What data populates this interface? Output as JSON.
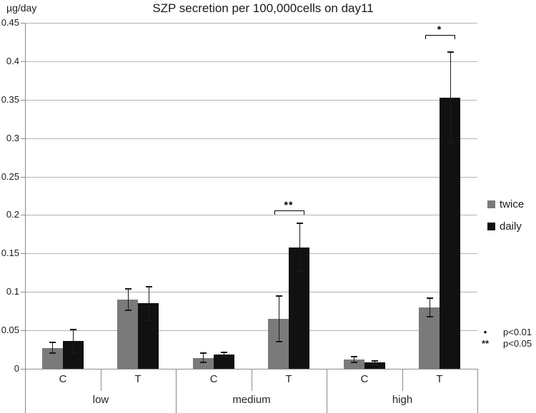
{
  "title": "SZP secretion per 100,000cells on day11",
  "y_axis_unit": "µg/day",
  "legend": {
    "items": [
      {
        "label": "twice",
        "color": "#7a7a7a"
      },
      {
        "label": "daily",
        "color": "#111111"
      }
    ]
  },
  "significance_note": {
    "rows": [
      {
        "marker": "•",
        "text": "p<0.01"
      },
      {
        "marker": "**",
        "text": "p<0.05"
      }
    ]
  },
  "chart_data": {
    "type": "bar",
    "title": "SZP secretion per 100,000cells on day11",
    "xlabel": "",
    "ylabel": "µg/day",
    "ylim": [
      0,
      0.45
    ],
    "ytick_step": 0.05,
    "grid": true,
    "error_bars": true,
    "legend_position": "right",
    "groups": [
      "low",
      "medium",
      "high"
    ],
    "categories": [
      "C",
      "T",
      "C",
      "T",
      "C",
      "T"
    ],
    "category_order_note": "values ordered low-C, low-T, medium-C, medium-T, high-C, high-T",
    "series": [
      {
        "name": "twice",
        "color": "#7a7a7a",
        "values": [
          0.027,
          0.09,
          0.014,
          0.065,
          0.012,
          0.08
        ],
        "errors": [
          0.007,
          0.014,
          0.006,
          0.03,
          0.004,
          0.012
        ]
      },
      {
        "name": "daily",
        "color": "#111111",
        "values": [
          0.036,
          0.085,
          0.019,
          0.158,
          0.008,
          0.353
        ],
        "errors": [
          0.015,
          0.022,
          0.002,
          0.031,
          0.002,
          0.059
        ]
      }
    ],
    "annotations": [
      {
        "category_index": 3,
        "label": "**",
        "bracket_y": 0.206
      },
      {
        "category_index": 5,
        "label": "*",
        "bracket_y": 0.434
      }
    ]
  }
}
